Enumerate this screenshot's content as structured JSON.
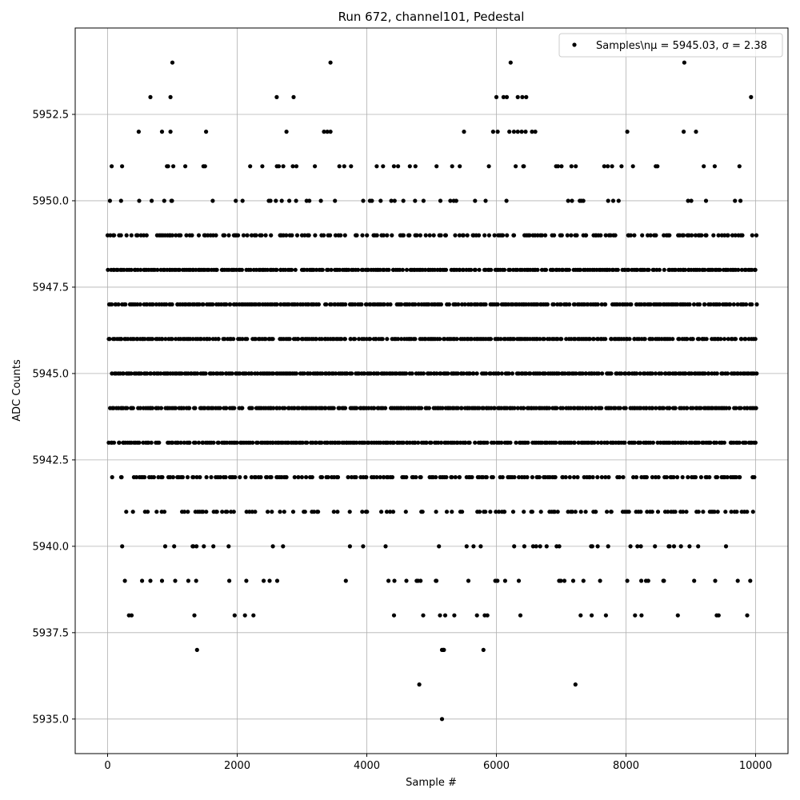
{
  "chart_data": {
    "type": "scatter",
    "title": "Run 672, channel101, Pedestal",
    "xlabel": "Sample #",
    "ylabel": "ADC Counts",
    "xlim": [
      -500,
      10500
    ],
    "ylim": [
      5934.0,
      5955.0
    ],
    "x_ticks": [
      0,
      2000,
      4000,
      6000,
      8000,
      10000
    ],
    "x_tick_labels": [
      "0",
      "2000",
      "4000",
      "6000",
      "8000",
      "10000"
    ],
    "y_ticks": [
      5935.0,
      5937.5,
      5940.0,
      5942.5,
      5945.0,
      5947.5,
      5950.0,
      5952.5
    ],
    "y_tick_labels": [
      "5935.0",
      "5937.5",
      "5940.0",
      "5942.5",
      "5945.0",
      "5947.5",
      "5950.0",
      "5952.5"
    ],
    "grid": true,
    "legend_position": "top-right",
    "marker_color": "#000000",
    "series": [
      {
        "name": "Samples\\nμ = 5945.03, σ = 2.38",
        "sample_count": 10000,
        "x_range": [
          0,
          9999
        ],
        "mean": 5945.03,
        "sigma": 2.38,
        "dense_levels": [
          5942,
          5943,
          5944,
          5945,
          5946,
          5947,
          5948,
          5949
        ],
        "sparse_levels": [
          5939,
          5940,
          5941,
          5950,
          5951
        ],
        "points": [
          [
            1000,
            5954
          ],
          [
            3440,
            5954
          ],
          [
            6220,
            5954
          ],
          [
            8900,
            5954
          ],
          [
            660,
            5953
          ],
          [
            970,
            5953
          ],
          [
            2610,
            5953
          ],
          [
            2870,
            5953
          ],
          [
            6000,
            5953
          ],
          [
            6110,
            5953
          ],
          [
            6160,
            5953
          ],
          [
            6330,
            5953
          ],
          [
            6400,
            5953
          ],
          [
            6460,
            5953
          ],
          [
            9930,
            5953
          ],
          [
            480,
            5952
          ],
          [
            840,
            5952
          ],
          [
            970,
            5952
          ],
          [
            1520,
            5952
          ],
          [
            2760,
            5952
          ],
          [
            3340,
            5952
          ],
          [
            3390,
            5952
          ],
          [
            3440,
            5952
          ],
          [
            5500,
            5952
          ],
          [
            5950,
            5952
          ],
          [
            6020,
            5952
          ],
          [
            6200,
            5952
          ],
          [
            6270,
            5952
          ],
          [
            6330,
            5952
          ],
          [
            6390,
            5952
          ],
          [
            6450,
            5952
          ],
          [
            6550,
            5952
          ],
          [
            6600,
            5952
          ],
          [
            8020,
            5952
          ],
          [
            8890,
            5952
          ],
          [
            9080,
            5952
          ],
          [
            5190,
            5937
          ],
          [
            5180,
            5937
          ],
          [
            5350,
            5938
          ],
          [
            5700,
            5938
          ],
          [
            5820,
            5938
          ],
          [
            5860,
            5938
          ],
          [
            6370,
            5938
          ],
          [
            330,
            5938
          ],
          [
            370,
            5938
          ],
          [
            1340,
            5938
          ],
          [
            1960,
            5938
          ],
          [
            2120,
            5938
          ],
          [
            2250,
            5938
          ],
          [
            4420,
            5938
          ],
          [
            4870,
            5938
          ],
          [
            5130,
            5938
          ],
          [
            5210,
            5938
          ],
          [
            7300,
            5938
          ],
          [
            7470,
            5938
          ],
          [
            7690,
            5938
          ],
          [
            8140,
            5938
          ],
          [
            8240,
            5938
          ],
          [
            8800,
            5938
          ],
          [
            9400,
            5938
          ],
          [
            9430,
            5938
          ],
          [
            9870,
            5938
          ],
          [
            1380,
            5937
          ],
          [
            5160,
            5937
          ],
          [
            5800,
            5937
          ],
          [
            4810,
            5936
          ],
          [
            7220,
            5936
          ],
          [
            5160,
            5935
          ]
        ]
      }
    ]
  }
}
